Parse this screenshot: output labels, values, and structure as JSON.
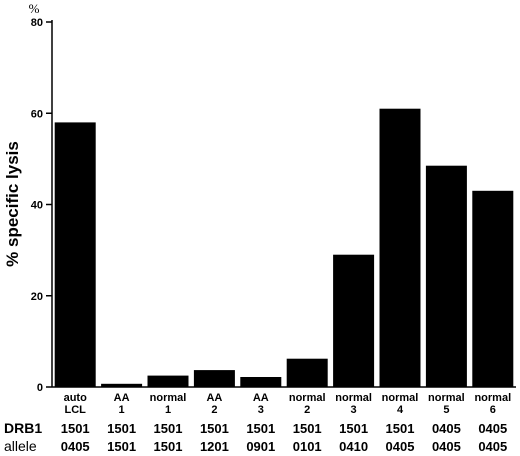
{
  "chart_data": {
    "type": "bar",
    "title": "",
    "ylabel": "% specific lysis",
    "y_unit": "%",
    "xlabel": "",
    "ylim": [
      0,
      80
    ],
    "yticks": [
      0,
      20,
      40,
      60,
      80
    ],
    "grid": false,
    "legend": "none",
    "bar_color": "#000000",
    "categories": [
      {
        "line1": "auto",
        "line2": "LCL"
      },
      {
        "line1": "AA",
        "line2": "1"
      },
      {
        "line1": "normal",
        "line2": "1"
      },
      {
        "line1": "AA",
        "line2": "2"
      },
      {
        "line1": "AA",
        "line2": "3"
      },
      {
        "line1": "normal",
        "line2": "2"
      },
      {
        "line1": "normal",
        "line2": "3"
      },
      {
        "line1": "normal",
        "line2": "4"
      },
      {
        "line1": "normal",
        "line2": "5"
      },
      {
        "line1": "normal",
        "line2": "6"
      }
    ],
    "values": [
      58,
      0.7,
      2.5,
      3.7,
      2.2,
      6.2,
      29,
      61,
      48.5,
      43
    ],
    "row_labels": {
      "line1": "DRB1",
      "line2": "allele"
    },
    "alleles": [
      [
        "1501",
        "0405"
      ],
      [
        "1501",
        "1501"
      ],
      [
        "1501",
        "1501"
      ],
      [
        "1501",
        "1201"
      ],
      [
        "1501",
        "0901"
      ],
      [
        "1501",
        "0101"
      ],
      [
        "1501",
        "0410"
      ],
      [
        "1501",
        "0405"
      ],
      [
        "0405",
        "0405"
      ],
      [
        "0405",
        "0405"
      ]
    ]
  }
}
